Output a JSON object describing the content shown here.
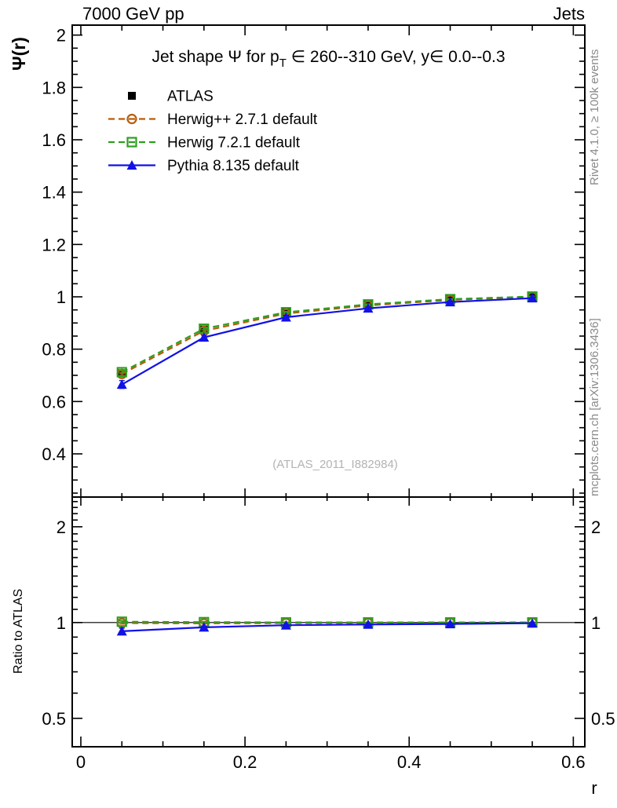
{
  "header": {
    "left": "7000 GeV pp",
    "right": "Jets"
  },
  "side_texts": {
    "top": "Rivet 4.1.0, ≥ 100k events",
    "bottom": "mcplots.cern.ch [arXiv:1306.3436]"
  },
  "chart_data": {
    "type": "line",
    "title": "Jet shape Ψ for p_T ∈ 260--310 GeV, y∈ 0.0--0.3",
    "title_segments": [
      {
        "text": "Jet shape Ψ for p"
      },
      {
        "text": "T",
        "sub": true
      },
      {
        "text": " ∈ 260--310 GeV, y∈ 0.0--0.3"
      }
    ],
    "watermark": "(ATLAS_2011_I882984)",
    "x": [
      0.05,
      0.15,
      0.25,
      0.35,
      0.45,
      0.55
    ],
    "series": [
      {
        "id": "atlas",
        "label": "ATLAS",
        "color": "#000000",
        "line": "none",
        "marker": "square-filled",
        "in_ratio": false,
        "values": [
          0.708,
          0.875,
          0.94,
          0.97,
          0.99,
          1.0
        ],
        "yerr": [
          0.012,
          0.008,
          0.005,
          0.004,
          0.003,
          0.002
        ],
        "ratio": [
          1.0,
          1.0,
          1.0,
          1.0,
          1.0,
          1.0
        ]
      },
      {
        "id": "herwigpp",
        "label": "Herwig++ 2.7.1 default",
        "color": "#b85c0a",
        "line": "dashed",
        "marker": "circle-open",
        "in_ratio": true,
        "values": [
          0.705,
          0.87,
          0.936,
          0.967,
          0.988,
          1.0
        ],
        "yerr": [
          0.005,
          0.004,
          0.003,
          0.002,
          0.002,
          0.002
        ],
        "ratio": [
          0.996,
          0.994,
          0.996,
          0.997,
          0.998,
          1.0
        ]
      },
      {
        "id": "herwig7",
        "label": "Herwig 7.2.1 default",
        "color": "#2f9e20",
        "line": "dashed",
        "marker": "square-open",
        "in_ratio": true,
        "values": [
          0.712,
          0.878,
          0.941,
          0.971,
          0.991,
          1.001
        ],
        "yerr": [
          0.005,
          0.004,
          0.003,
          0.002,
          0.002,
          0.002
        ],
        "ratio": [
          1.006,
          1.003,
          1.001,
          1.001,
          1.001,
          1.001
        ]
      },
      {
        "id": "pythia",
        "label": "Pythia 8.135 default",
        "color": "#1111e8",
        "line": "solid",
        "marker": "triangle-filled",
        "in_ratio": true,
        "values": [
          0.665,
          0.845,
          0.922,
          0.956,
          0.98,
          0.995
        ],
        "yerr": [
          0.015,
          0.008,
          0.005,
          0.004,
          0.003,
          0.002
        ],
        "ratio": [
          0.939,
          0.966,
          0.981,
          0.986,
          0.99,
          0.995
        ]
      }
    ],
    "x_axis": {
      "label": "r",
      "min": -0.0105,
      "max": 0.614,
      "minor_step": 0.05,
      "major": [
        {
          "v": 0,
          "label": "0"
        },
        {
          "v": 0.2,
          "label": "0.2"
        },
        {
          "v": 0.4,
          "label": "0.4"
        },
        {
          "v": 0.6,
          "label": "0.6"
        }
      ]
    },
    "y_axis_main": {
      "label": "Ψ(r)",
      "min": 0.235,
      "max": 2.038,
      "minor_step": 0.05,
      "major": [
        {
          "v": 0.4,
          "label": "0.4"
        },
        {
          "v": 0.6,
          "label": "0.6"
        },
        {
          "v": 0.8,
          "label": "0.8"
        },
        {
          "v": 1,
          "label": "1"
        },
        {
          "v": 1.2,
          "label": "1.2"
        },
        {
          "v": 1.4,
          "label": "1.4"
        },
        {
          "v": 1.6,
          "label": "1.6"
        },
        {
          "v": 1.8,
          "label": "1.8"
        },
        {
          "v": 2,
          "label": "2"
        }
      ]
    },
    "y_axis_ratio": {
      "label": "Ratio to ATLAS",
      "scale": "log",
      "min": 0.407,
      "max": 2.48,
      "ref_line": 1,
      "major": [
        {
          "v": 0.5,
          "label": "0.5"
        },
        {
          "v": 1,
          "label": "1"
        },
        {
          "v": 2,
          "label": "2"
        }
      ],
      "minor": [
        0.6,
        0.7,
        0.8,
        0.9,
        1.1,
        1.2,
        1.3,
        1.4,
        1.5,
        1.6,
        1.7,
        1.8,
        1.9,
        2.1,
        2.2,
        2.3,
        2.4
      ]
    },
    "legend_position": "top-left-inside"
  }
}
